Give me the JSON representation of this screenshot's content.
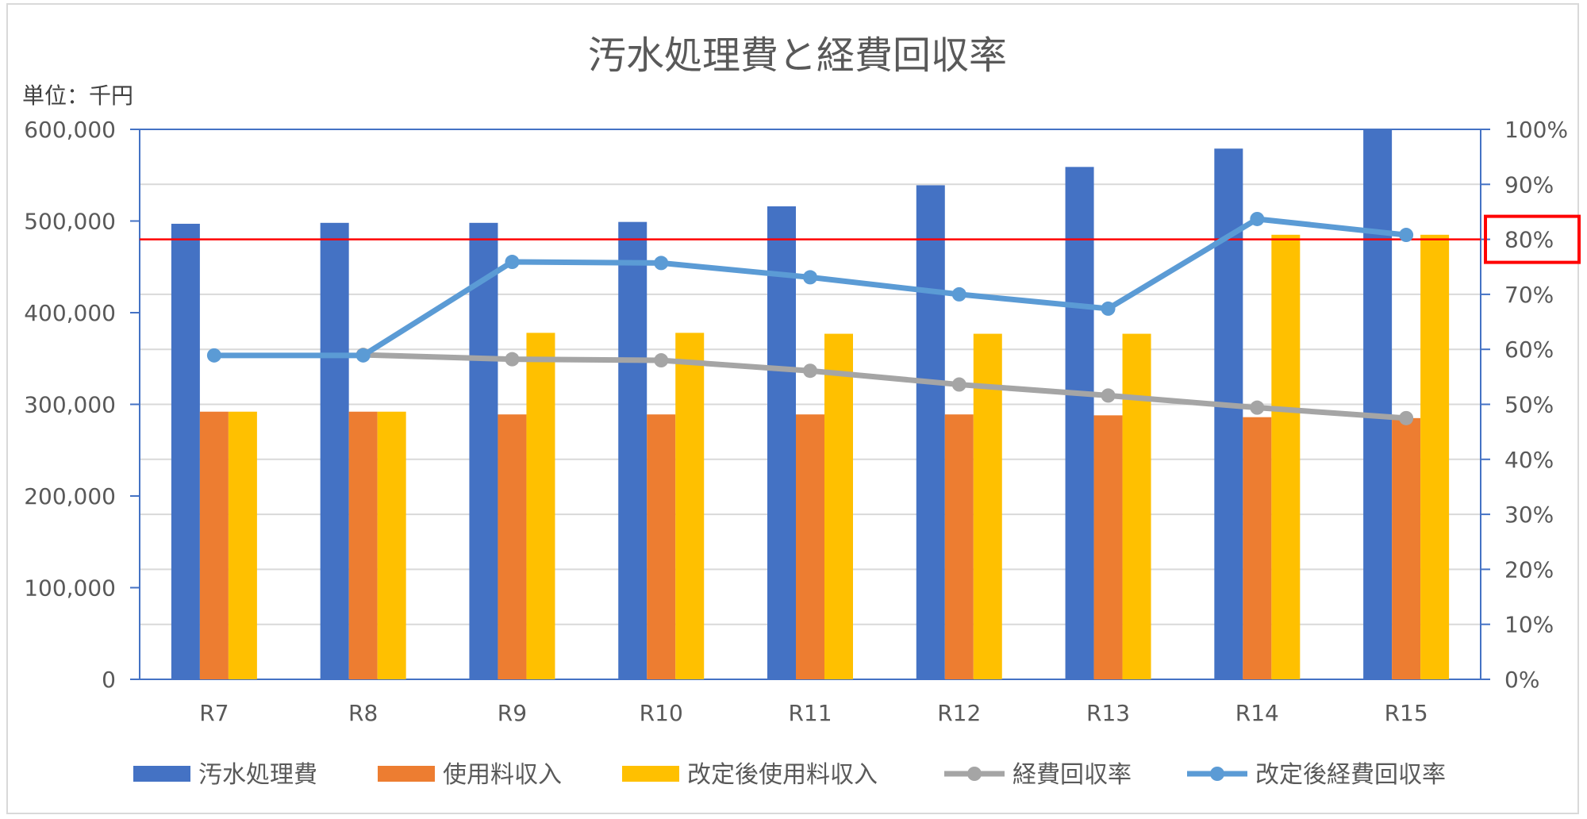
{
  "chart_data": {
    "type": "bar",
    "title": "汚水処理費と経費回収率",
    "unit_label": "単位：千円",
    "categories": [
      "R7",
      "R8",
      "R9",
      "R10",
      "R11",
      "R12",
      "R13",
      "R14",
      "R15"
    ],
    "y_left": {
      "min": 0,
      "max": 600000,
      "step": 100000,
      "tick_labels": [
        "0",
        "100,000",
        "200,000",
        "300,000",
        "400,000",
        "500,000",
        "600,000"
      ]
    },
    "y_right": {
      "min": 0,
      "max": 100,
      "step": 10,
      "tick_labels": [
        "0%",
        "10%",
        "20%",
        "30%",
        "40%",
        "50%",
        "60%",
        "70%",
        "80%",
        "90%",
        "100%"
      ]
    },
    "gridlines": true,
    "legend_position": "bottom",
    "bar_series": [
      {
        "name": "汚水処理費",
        "color": "#4472C4",
        "values": [
          497000,
          498000,
          498000,
          499000,
          516000,
          539000,
          559000,
          579000,
          600000
        ]
      },
      {
        "name": "使用料収入",
        "color": "#ED7D31",
        "values": [
          292000,
          292000,
          289000,
          289000,
          289000,
          289000,
          288000,
          286000,
          285000
        ]
      },
      {
        "name": "改定後使用料収入",
        "color": "#FFC000",
        "values": [
          292000,
          292000,
          378000,
          378000,
          377000,
          377000,
          377000,
          485000,
          485000
        ]
      }
    ],
    "line_series": [
      {
        "name": "経費回収率",
        "color": "#A5A5A5",
        "axis": "right",
        "values": [
          null,
          59,
          58.2,
          58,
          56.1,
          53.6,
          51.6,
          49.4,
          47.5
        ]
      },
      {
        "name": "改定後経費回収率",
        "color": "#5B9BD5",
        "axis": "right",
        "values": [
          58.9,
          58.9,
          75.9,
          75.7,
          73.1,
          70,
          67.4,
          83.7,
          80.8
        ]
      }
    ],
    "reference_line": {
      "value": 80,
      "axis": "right",
      "color": "#FF0000"
    },
    "highlight_tick": {
      "label": "80%",
      "axis": "right",
      "color": "#FF0000"
    }
  }
}
